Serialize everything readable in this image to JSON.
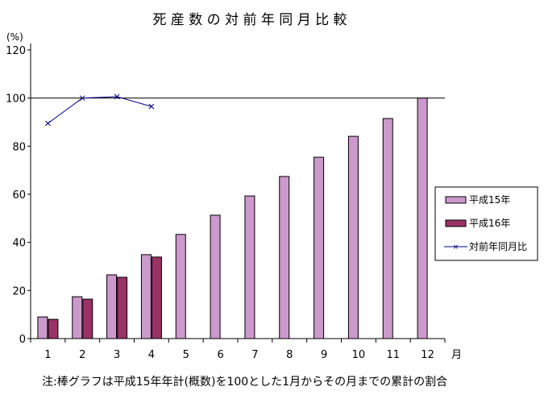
{
  "chart_data": {
    "type": "bar",
    "title": "死 産 数 の 対 前 年 同 月 比 較",
    "ylabel": "(%)",
    "xlabel": "月",
    "ylim": [
      0,
      120
    ],
    "yticks": [
      0,
      20,
      40,
      60,
      80,
      100,
      120
    ],
    "categories": [
      "1",
      "2",
      "3",
      "4",
      "5",
      "6",
      "7",
      "8",
      "9",
      "10",
      "11",
      "12"
    ],
    "series": [
      {
        "name": "平成15年",
        "type": "bar",
        "color": "#cc99cc",
        "values": [
          9.0,
          17.4,
          26.5,
          34.9,
          43.3,
          51.3,
          59.3,
          67.4,
          75.4,
          84.1,
          91.5,
          100
        ]
      },
      {
        "name": "平成16年",
        "type": "bar",
        "color": "#993366",
        "values": [
          8.0,
          16.4,
          25.5,
          33.9,
          null,
          null,
          null,
          null,
          null,
          null,
          null,
          null
        ]
      },
      {
        "name": "対前年同月比",
        "type": "line",
        "color": "#000080",
        "marker": "x",
        "values": [
          89.5,
          100,
          100.6,
          96.5,
          null,
          null,
          null,
          null,
          null,
          null,
          null,
          null
        ]
      }
    ],
    "reference_line": 100,
    "legend": "right",
    "grid": false,
    "note": "注:棒グラフは平成15年年計(概数)を100とした1月からその月までの累計の割合"
  }
}
